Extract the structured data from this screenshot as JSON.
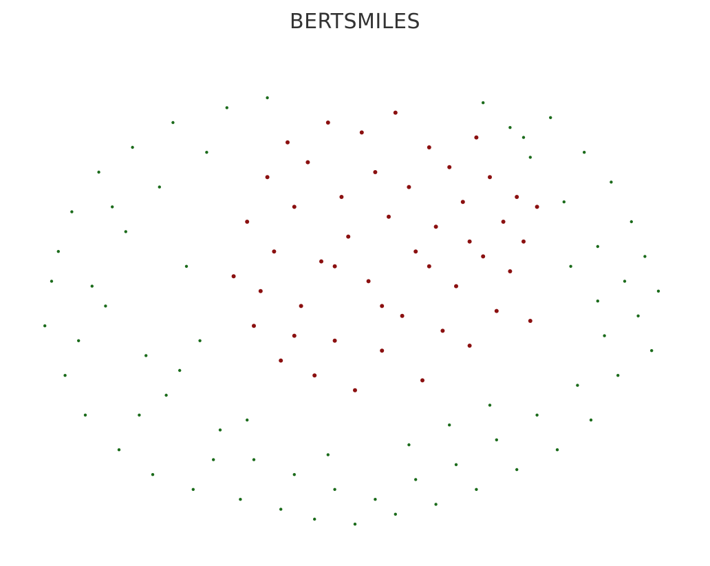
{
  "chart_data": {
    "type": "scatter",
    "title": "BERTSMILES",
    "xlabel": "",
    "ylabel": "",
    "axes_visible": false,
    "grid": false,
    "legend": "none",
    "series": [
      {
        "color": "#1b6b1b",
        "points": [
          [
            -4.6,
            -0.6
          ],
          [
            -4.4,
            0.9
          ],
          [
            -4.3,
            -1.6
          ],
          [
            -4.2,
            1.7
          ],
          [
            -4.0,
            -2.4
          ],
          [
            -3.9,
            0.2
          ],
          [
            -3.8,
            2.5
          ],
          [
            -3.7,
            -0.2
          ],
          [
            -3.5,
            -3.1
          ],
          [
            -3.4,
            1.3
          ],
          [
            -3.3,
            3.0
          ],
          [
            -3.1,
            -1.2
          ],
          [
            -3.0,
            -3.6
          ],
          [
            -2.9,
            2.2
          ],
          [
            -2.8,
            -2.0
          ],
          [
            -2.7,
            3.5
          ],
          [
            -2.5,
            0.6
          ],
          [
            -2.4,
            -3.9
          ],
          [
            -2.3,
            -0.9
          ],
          [
            -2.2,
            2.9
          ],
          [
            -2.0,
            -2.7
          ],
          [
            -1.9,
            3.8
          ],
          [
            -1.7,
            -4.1
          ],
          [
            -1.5,
            -3.3
          ],
          [
            -1.3,
            4.0
          ],
          [
            -1.1,
            -4.3
          ],
          [
            -0.9,
            -3.6
          ],
          [
            -0.6,
            -4.5
          ],
          [
            -0.3,
            -3.9
          ],
          [
            0.0,
            -4.6
          ],
          [
            0.3,
            -4.1
          ],
          [
            0.6,
            -4.4
          ],
          [
            0.9,
            -3.7
          ],
          [
            1.2,
            -4.2
          ],
          [
            1.5,
            -3.4
          ],
          [
            1.8,
            -3.9
          ],
          [
            1.9,
            3.9
          ],
          [
            2.1,
            -2.9
          ],
          [
            2.3,
            3.4
          ],
          [
            2.4,
            -3.5
          ],
          [
            2.6,
            2.8
          ],
          [
            2.7,
            -2.4
          ],
          [
            2.9,
            3.6
          ],
          [
            3.0,
            -3.1
          ],
          [
            3.1,
            1.9
          ],
          [
            3.3,
            -1.8
          ],
          [
            3.4,
            2.9
          ],
          [
            3.5,
            -2.5
          ],
          [
            3.6,
            1.0
          ],
          [
            3.7,
            -0.8
          ],
          [
            3.8,
            2.3
          ],
          [
            3.9,
            -1.6
          ],
          [
            4.0,
            0.3
          ],
          [
            4.1,
            1.5
          ],
          [
            4.2,
            -0.4
          ],
          [
            4.3,
            0.8
          ],
          [
            4.4,
            -1.1
          ],
          [
            4.5,
            0.1
          ],
          [
            -4.5,
            0.3
          ],
          [
            -4.1,
            -0.9
          ],
          [
            -3.6,
            1.8
          ],
          [
            -3.2,
            -2.4
          ],
          [
            -2.6,
            -1.5
          ],
          [
            -2.1,
            -3.3
          ],
          [
            -1.6,
            -2.5
          ],
          [
            -0.4,
            -3.2
          ],
          [
            0.8,
            -3.0
          ],
          [
            1.4,
            -2.6
          ],
          [
            2.0,
            -2.2
          ],
          [
            2.5,
            3.2
          ],
          [
            3.2,
            0.6
          ],
          [
            3.6,
            -0.1
          ]
        ]
      },
      {
        "color": "#8b1010",
        "points": [
          [
            -1.8,
            0.4
          ],
          [
            -1.6,
            1.5
          ],
          [
            -1.5,
            -0.6
          ],
          [
            -1.3,
            2.4
          ],
          [
            -1.2,
            0.9
          ],
          [
            -1.1,
            -1.3
          ],
          [
            -1.0,
            3.1
          ],
          [
            -0.9,
            1.8
          ],
          [
            -0.8,
            -0.2
          ],
          [
            -0.7,
            2.7
          ],
          [
            -0.6,
            -1.6
          ],
          [
            -0.5,
            0.7
          ],
          [
            -0.4,
            3.5
          ],
          [
            -0.3,
            -0.9
          ],
          [
            -0.2,
            2.0
          ],
          [
            -0.1,
            1.2
          ],
          [
            0.0,
            -1.9
          ],
          [
            0.1,
            3.3
          ],
          [
            0.2,
            0.3
          ],
          [
            0.3,
            2.5
          ],
          [
            0.4,
            -1.1
          ],
          [
            0.5,
            1.6
          ],
          [
            0.6,
            3.7
          ],
          [
            0.7,
            -0.4
          ],
          [
            0.8,
            2.2
          ],
          [
            0.9,
            0.9
          ],
          [
            1.0,
            -1.7
          ],
          [
            1.1,
            3.0
          ],
          [
            1.2,
            1.4
          ],
          [
            1.3,
            -0.7
          ],
          [
            1.4,
            2.6
          ],
          [
            1.5,
            0.2
          ],
          [
            1.6,
            1.9
          ],
          [
            1.7,
            -1.0
          ],
          [
            1.8,
            3.2
          ],
          [
            1.9,
            0.8
          ],
          [
            2.0,
            2.4
          ],
          [
            2.1,
            -0.3
          ],
          [
            2.2,
            1.5
          ],
          [
            2.3,
            0.5
          ],
          [
            2.4,
            2.0
          ],
          [
            2.5,
            1.1
          ],
          [
            2.6,
            -0.5
          ],
          [
            2.7,
            1.8
          ],
          [
            -1.4,
            0.1
          ],
          [
            -0.9,
            -0.8
          ],
          [
            -0.3,
            0.6
          ],
          [
            0.4,
            -0.2
          ],
          [
            1.1,
            0.6
          ],
          [
            1.7,
            1.1
          ]
        ]
      }
    ]
  }
}
